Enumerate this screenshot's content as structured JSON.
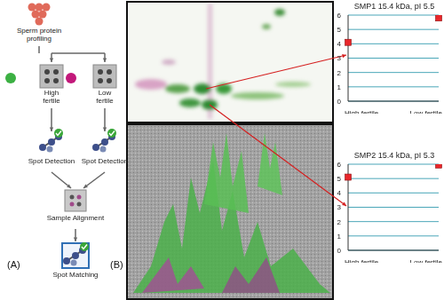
{
  "diagram": {
    "panel_a": {
      "label": "(A)",
      "source": "Sperm protein profiling",
      "groups": [
        {
          "label": "High fertile",
          "color": "#3cb043"
        },
        {
          "label": "Low fertile",
          "color": "#c2187a"
        }
      ],
      "steps": [
        "Spot Detection",
        "Sample Alignment",
        "Spot Matching"
      ]
    },
    "panel_b": {
      "label": "(B)"
    }
  },
  "chart_data": [
    {
      "type": "scatter",
      "title": "SMP1 15.4 kDa, pI 5.5",
      "categories": [
        "High fertile",
        "Low fertile"
      ],
      "values": [
        4.1,
        5.8
      ],
      "color": "#e8262a",
      "marker": "square",
      "ylim": [
        0,
        6
      ],
      "yticks": [
        0,
        1,
        2,
        3,
        4,
        5,
        6
      ],
      "grid": true
    },
    {
      "type": "scatter",
      "title": "SMP2 15.4 kDa, pI 5.3",
      "categories": [
        "High fertile",
        "Low fertile"
      ],
      "values": [
        5.1,
        5.95
      ],
      "color": "#e8262a",
      "marker": "square",
      "ylim": [
        0,
        6
      ],
      "yticks": [
        0,
        1,
        2,
        3,
        4,
        5,
        6
      ],
      "grid": true
    }
  ]
}
